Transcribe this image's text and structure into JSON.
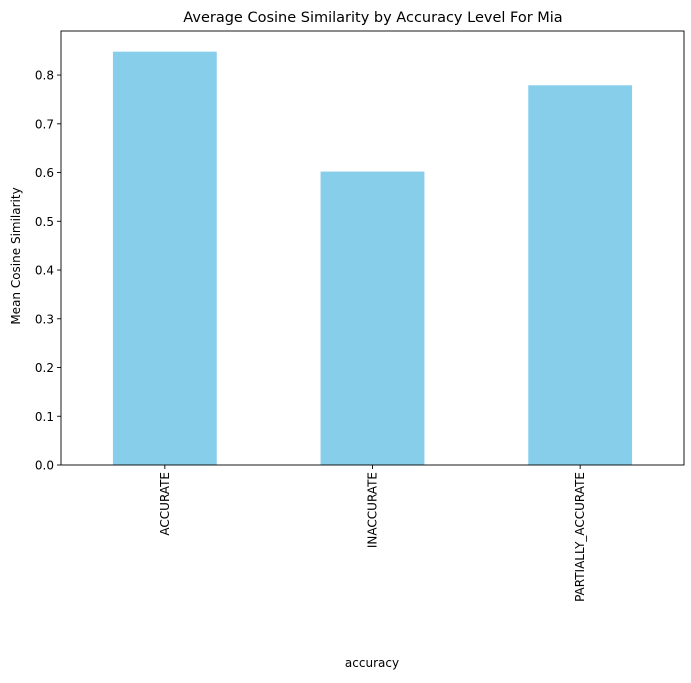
{
  "chart_data": {
    "type": "bar",
    "title": "Average Cosine Similarity by Accuracy Level For Mia",
    "xlabel": "accuracy",
    "ylabel": "Mean Cosine Similarity",
    "categories": [
      "ACCURATE",
      "INACCURATE",
      "PARTIALLY_ACCURATE"
    ],
    "values": [
      0.848,
      0.602,
      0.779
    ],
    "ylim": [
      0,
      0.8904
    ],
    "yticks": [
      0.0,
      0.1,
      0.2,
      0.3,
      0.4,
      0.5,
      0.6,
      0.7,
      0.8
    ],
    "ytick_labels": [
      "0.0",
      "0.1",
      "0.2",
      "0.3",
      "0.4",
      "0.5",
      "0.6",
      "0.7",
      "0.8"
    ],
    "bar_color": "#87ceeb",
    "grid": false,
    "legend": "none"
  }
}
